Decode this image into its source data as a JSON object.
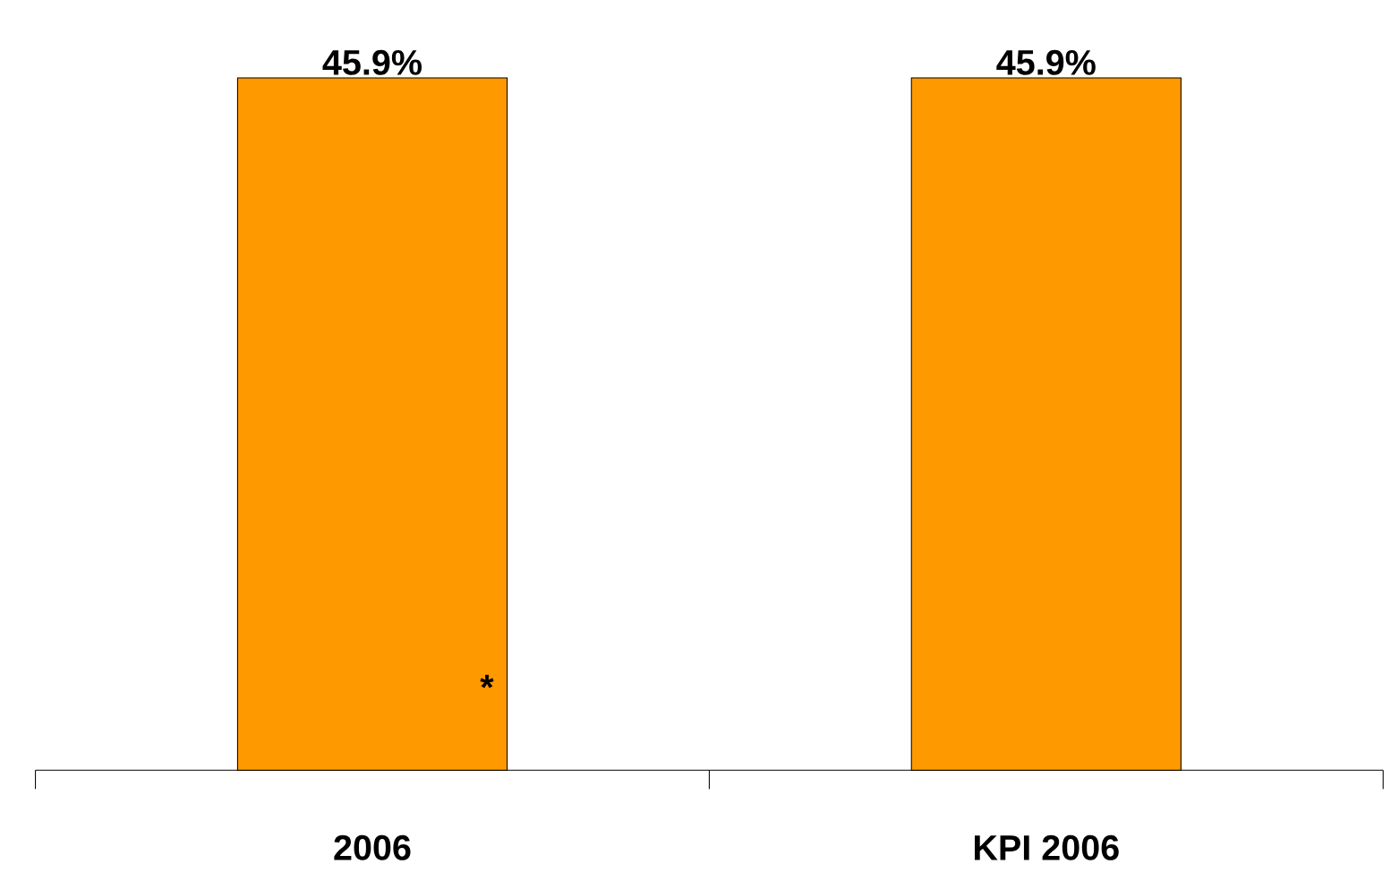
{
  "chart_data": {
    "type": "bar",
    "categories": [
      "2006",
      "KPI 2006"
    ],
    "values": [
      45.9,
      45.9
    ],
    "value_labels": [
      "45.9%",
      "45.9%"
    ],
    "color": "#ff9900",
    "annotations": [
      "*"
    ]
  }
}
